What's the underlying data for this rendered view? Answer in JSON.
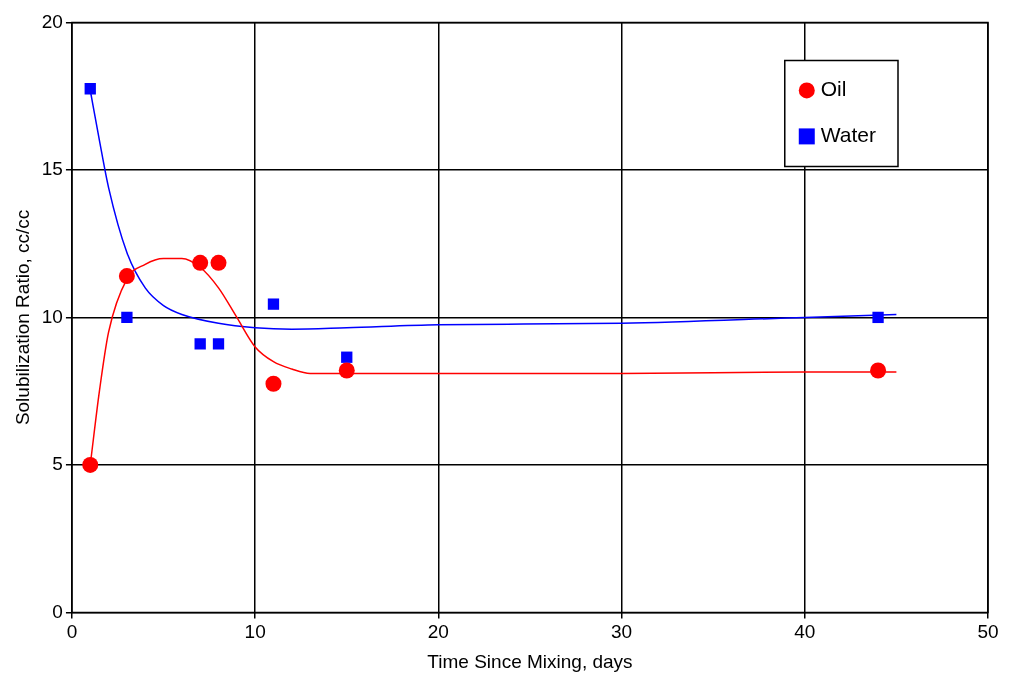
{
  "chart_data": {
    "type": "scatter",
    "xlabel": "Time Since Mixing, days",
    "ylabel": "Solubilization Ratio, cc/cc",
    "xlim": [
      0,
      50
    ],
    "xticks": [
      0,
      10,
      20,
      30,
      40,
      50
    ],
    "ylim": [
      0,
      20
    ],
    "yticks": [
      0,
      5,
      10,
      15,
      20
    ],
    "grid": true,
    "legend": "top right",
    "series": [
      {
        "name": "Oil",
        "color": "#ff0000",
        "marker": "circle",
        "x": [
          1,
          3,
          7,
          8,
          11,
          15,
          44
        ],
        "values": [
          5,
          11.4,
          11.85,
          11.85,
          7.75,
          8.2,
          8.2
        ]
      },
      {
        "name": "Water",
        "color": "#0000ff",
        "marker": "square",
        "x": [
          1,
          3,
          7,
          8,
          11,
          15,
          44
        ],
        "values": [
          17.75,
          10,
          9.1,
          9.1,
          10.45,
          8.65,
          10
        ]
      },
      {
        "type": "line",
        "color": "#ff0000",
        "marker": "none",
        "x": [
          1,
          1.5,
          2,
          3,
          4,
          5,
          6,
          7,
          8,
          9,
          10,
          11,
          12,
          13,
          15,
          20,
          30,
          40,
          45
        ],
        "values": [
          5,
          7.5,
          9.5,
          11.3,
          11.8,
          12,
          12,
          11.7,
          11,
          10,
          9,
          8.5,
          8.25,
          8.1,
          8.1,
          8.1,
          8.1,
          8.15,
          8.15
        ]
      },
      {
        "type": "line",
        "color": "#0000ff",
        "marker": "none",
        "x": [
          1,
          1.5,
          2,
          3,
          4,
          5,
          6,
          8,
          10,
          12,
          15,
          20,
          30,
          40,
          45
        ],
        "values": [
          17.7,
          16,
          14.4,
          12.2,
          11,
          10.4,
          10.1,
          9.8,
          9.65,
          9.6,
          9.65,
          9.75,
          9.8,
          10,
          10.1
        ]
      }
    ]
  }
}
